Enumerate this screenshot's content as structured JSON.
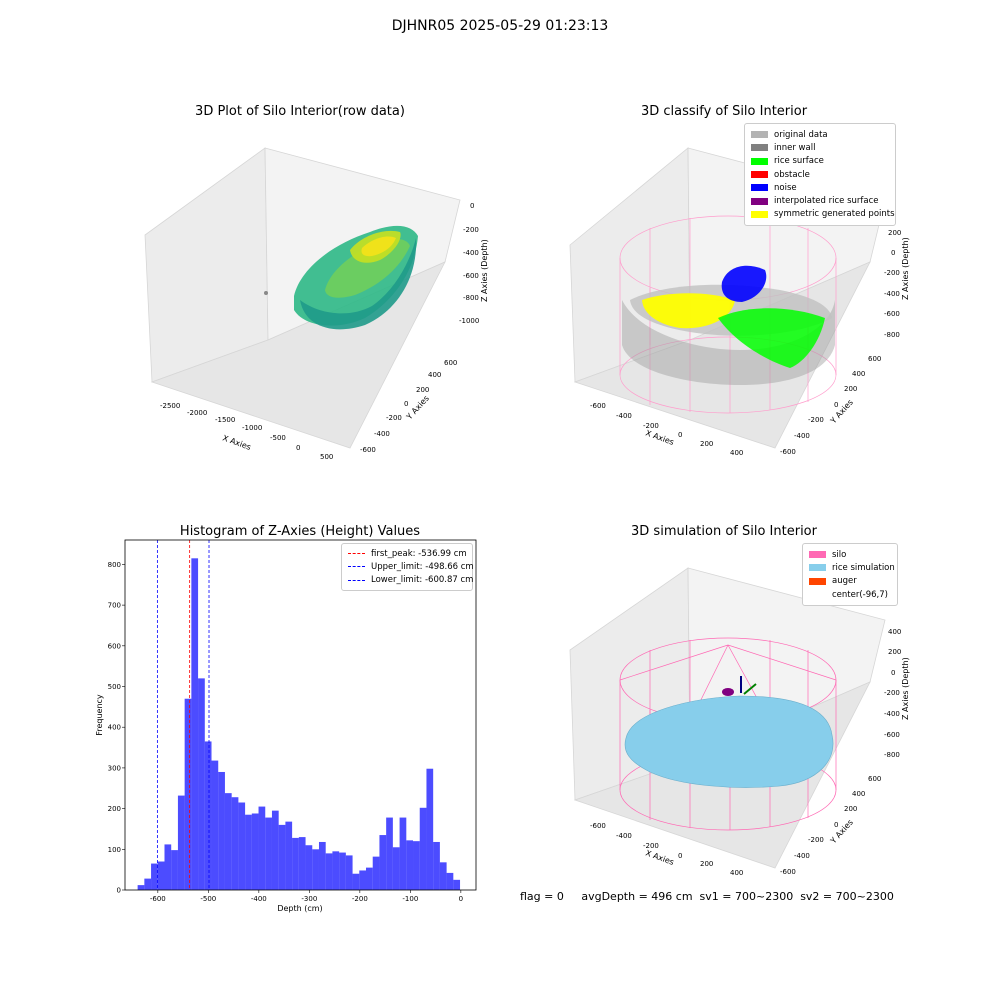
{
  "suptitle": "DJHNR05 2025-05-29 01:23:13",
  "footer": "flag = 0     avgDepth = 496 cm  sv1 = 700~2300  sv2 = 700~2300",
  "colors": {
    "hist_bar": "#0000ff",
    "peak_line": "#ff0000",
    "limit_line": "#0000ff",
    "silo": "#ff69b4",
    "rice_sim": "#87ceeb"
  },
  "chart_data": [
    {
      "type": "scatter",
      "subtype": "3d",
      "title": "3D Plot of Silo Interior(row data)",
      "xlabel": "X Axies",
      "ylabel": "Y Axies",
      "zlabel": "Z Axies (Depth)",
      "x_ticks": [
        "-2500",
        "-2000",
        "-1500",
        "-1000",
        "-500",
        "0",
        "500"
      ],
      "y_ticks": [
        "-600",
        "-400",
        "-200",
        "0",
        "200",
        "400",
        "600"
      ],
      "z_ticks": [
        "0",
        "-200",
        "-400",
        "-600",
        "-800",
        "-1000"
      ],
      "colormap": "viridis",
      "description_values": {
        "x_range": [
          -2500,
          500
        ],
        "y_range": [
          -600,
          600
        ],
        "z_range": [
          -1000,
          0
        ]
      }
    },
    {
      "type": "scatter",
      "subtype": "3d",
      "title": "3D classify of Silo Interior",
      "xlabel": "X Axies",
      "ylabel": "Y Axies",
      "zlabel": "Z Axies (Depth)",
      "x_ticks": [
        "-600",
        "-400",
        "-200",
        "0",
        "200",
        "400"
      ],
      "y_ticks": [
        "-600",
        "-400",
        "-200",
        "0",
        "200",
        "400",
        "600"
      ],
      "z_ticks": [
        "200",
        "0",
        "-200",
        "-400",
        "-600",
        "-800"
      ],
      "legend_position": "top-right",
      "legend": [
        {
          "label": "original data",
          "color": "#b3b3b3"
        },
        {
          "label": "inner wall",
          "color": "#808080"
        },
        {
          "label": "rice surface",
          "color": "#00ff00"
        },
        {
          "label": "obstacle",
          "color": "#ff0000"
        },
        {
          "label": "noise",
          "color": "#0000ff"
        },
        {
          "label": "interpolated rice surface",
          "color": "#800080"
        },
        {
          "label": "symmetric generated points",
          "color": "#ffff00"
        }
      ]
    },
    {
      "type": "bar",
      "subtype": "histogram",
      "title": "Histogram of Z-Axies (Height) Values",
      "xlabel": "Depth (cm)",
      "ylabel": "Frequency",
      "xlim": [
        -665,
        30
      ],
      "ylim": [
        0,
        860
      ],
      "x_ticks": [
        -600,
        -500,
        -400,
        -300,
        -200,
        -100,
        0
      ],
      "y_ticks": [
        0,
        100,
        200,
        300,
        400,
        500,
        600,
        700,
        800
      ],
      "bin_width": 13.3,
      "bin_start": -640,
      "values": [
        12,
        28,
        65,
        70,
        112,
        98,
        232,
        470,
        815,
        520,
        365,
        318,
        290,
        238,
        228,
        215,
        185,
        188,
        205,
        178,
        195,
        160,
        168,
        128,
        130,
        110,
        100,
        118,
        90,
        95,
        92,
        85,
        40,
        48,
        55,
        82,
        135,
        178,
        105,
        178,
        122,
        120,
        202,
        298,
        118,
        68,
        42,
        25
      ],
      "vlines": [
        {
          "x": -536.99,
          "label": "first_peak: -536.99 cm",
          "color": "#ff0000"
        },
        {
          "x": -498.66,
          "label": "Upper_limit: -498.66 cm",
          "color": "#0000ff"
        },
        {
          "x": -600.87,
          "label": "Lower_limit: -600.87 cm",
          "color": "#0000ff"
        }
      ],
      "legend_position": "top-right"
    },
    {
      "type": "scatter",
      "subtype": "3d-surface",
      "title": "3D simulation of Silo Interior",
      "xlabel": "X Axies",
      "ylabel": "Y Axies",
      "zlabel": "Z Axies (Depth)",
      "x_ticks": [
        "-600",
        "-400",
        "-200",
        "0",
        "200",
        "400"
      ],
      "y_ticks": [
        "-600",
        "-400",
        "-200",
        "0",
        "200",
        "400",
        "600"
      ],
      "z_ticks": [
        "400",
        "200",
        "0",
        "-200",
        "-400",
        "-600",
        "-800"
      ],
      "legend_position": "top-right",
      "legend": [
        {
          "label": "silo",
          "color": "#ff69b4"
        },
        {
          "label": "rice simulation",
          "color": "#87ceeb"
        },
        {
          "label": "auger",
          "color": "#ff4500"
        },
        {
          "label": "center(-96,7)",
          "color": ""
        }
      ]
    }
  ]
}
